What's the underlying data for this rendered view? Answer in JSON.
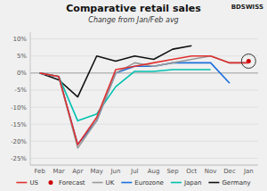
{
  "chart_data": {
    "type": "line",
    "title": "Comparative retail sales",
    "subtitle": "Change from Jan/Feb avg",
    "annotations": [
      "BDSWISS"
    ],
    "categories": [
      "Feb",
      "Mar",
      "Apr",
      "May",
      "Jun",
      "Jul",
      "Aug",
      "Sep",
      "Oct",
      "Nov",
      "Dec",
      "Jan"
    ],
    "series": [
      {
        "name": "US",
        "color": "#e03030",
        "values": [
          0,
          -1,
          -21,
          -13,
          1,
          2,
          3,
          4,
          5,
          5,
          3,
          3
        ]
      },
      {
        "name": "Forecast",
        "type": "scatter",
        "marker": "circle",
        "color": "#cc0000",
        "values": [
          null,
          null,
          null,
          null,
          null,
          null,
          null,
          null,
          null,
          null,
          null,
          3.5
        ]
      },
      {
        "name": "UK",
        "color": "#999999",
        "values": [
          0,
          -1,
          -22,
          -14,
          0,
          3,
          2,
          3,
          4,
          5,
          3,
          3
        ]
      },
      {
        "name": "Eurozone",
        "color": "#1a6fdc",
        "values": [
          0,
          -1,
          -21,
          -14,
          0,
          2,
          2,
          3,
          3,
          3,
          -3,
          null
        ]
      },
      {
        "name": "Japan",
        "color": "#00c0b0",
        "values": [
          0,
          -1,
          -14,
          -12,
          -4,
          0.5,
          0.5,
          1,
          1,
          1,
          null,
          null
        ]
      },
      {
        "name": "Germany",
        "color": "#111111",
        "values": [
          0,
          -2,
          -7,
          5,
          3.5,
          5,
          4,
          7,
          8,
          null,
          null,
          null
        ]
      }
    ],
    "ylim": [
      -27,
      12
    ],
    "yticks": [
      {
        "value": -25,
        "label": "-25%"
      },
      {
        "value": -20,
        "label": "-20%"
      },
      {
        "value": -15,
        "label": "-15%"
      },
      {
        "value": -10,
        "label": "-10%"
      },
      {
        "value": -5,
        "label": "-5%"
      },
      {
        "value": 0,
        "label": "0%"
      },
      {
        "value": 5,
        "label": "5%"
      },
      {
        "value": 10,
        "label": "10%"
      }
    ],
    "grid": true,
    "legend": "bottom"
  }
}
